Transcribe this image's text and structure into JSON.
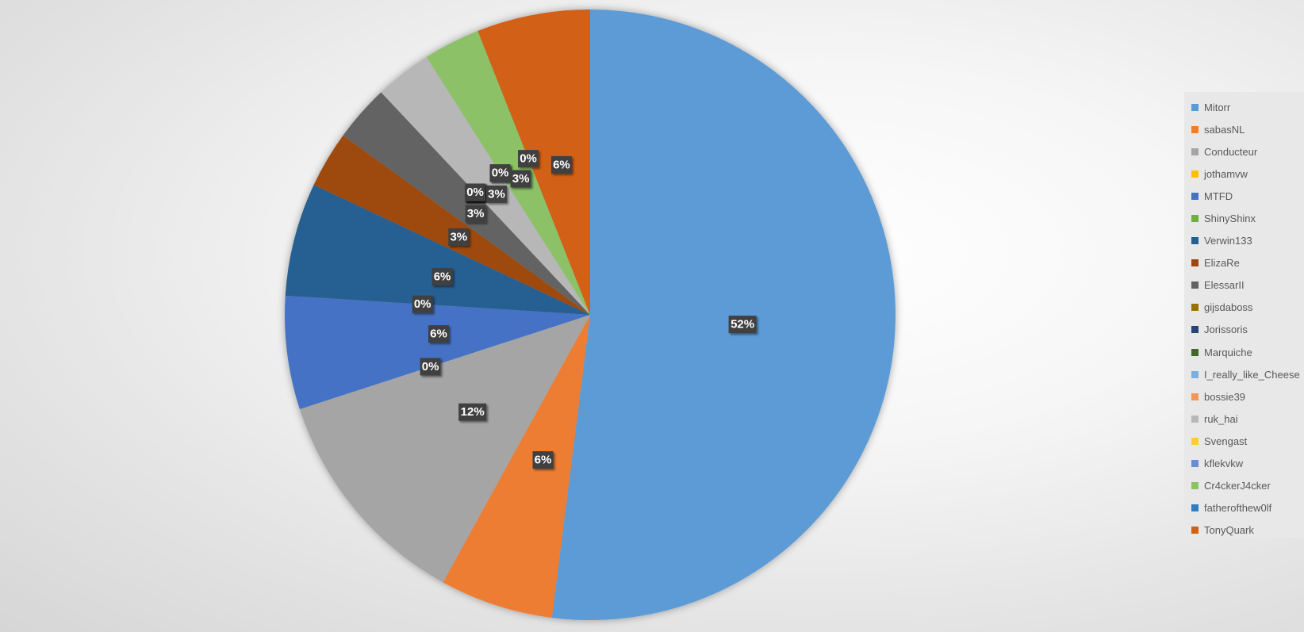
{
  "chart_data": {
    "type": "pie",
    "series": [
      {
        "name": "Mitorr",
        "value": 52,
        "label": "52%",
        "color": "#5B9BD5"
      },
      {
        "name": "sabasNL",
        "value": 6,
        "label": "6%",
        "color": "#ED7D31"
      },
      {
        "name": "Conducteur",
        "value": 12,
        "label": "12%",
        "color": "#A5A5A5"
      },
      {
        "name": "jothamvw",
        "value": 0,
        "label": "0%",
        "color": "#FFC000"
      },
      {
        "name": "MTFD",
        "value": 6,
        "label": "6%",
        "color": "#4472C4"
      },
      {
        "name": "ShinyShinx",
        "value": 0,
        "label": "0%",
        "color": "#70AD47"
      },
      {
        "name": "Verwin133",
        "value": 6,
        "label": "6%",
        "color": "#255E91"
      },
      {
        "name": "ElizaRe",
        "value": 3,
        "label": "3%",
        "color": "#9E480E"
      },
      {
        "name": "ElessarII",
        "value": 3,
        "label": "3%",
        "color": "#636363"
      },
      {
        "name": "gijsdaboss",
        "value": 0,
        "label": "0%",
        "color": "#997300"
      },
      {
        "name": "Jorissoris",
        "value": 0,
        "label": "0%",
        "color": "#264478"
      },
      {
        "name": "Marquiche",
        "value": 0,
        "label": "0%",
        "color": "#43682B"
      },
      {
        "name": "I_really_like_Cheese",
        "value": 0,
        "label": "0%",
        "color": "#7CAFDD"
      },
      {
        "name": "bossie39",
        "value": 0,
        "label": "0%",
        "color": "#F1975A"
      },
      {
        "name": "ruk_hai",
        "value": 3,
        "label": "3%",
        "color": "#B7B7B7"
      },
      {
        "name": "Svengast",
        "value": 0,
        "label": "0%",
        "color": "#FFCD33"
      },
      {
        "name": "kflekvkw",
        "value": 0,
        "label": "0%",
        "color": "#698ED0"
      },
      {
        "name": "Cr4ckerJ4cker",
        "value": 3,
        "label": "3%",
        "color": "#8CC168"
      },
      {
        "name": "fatherofthew0lf",
        "value": 0,
        "label": "0%",
        "color": "#327DC2"
      },
      {
        "name": "TonyQuark",
        "value": 6,
        "label": "6%",
        "color": "#D26012"
      }
    ],
    "legend": "right",
    "data_label_background": "#404040",
    "data_label_text_color": "#FFFFFF"
  },
  "legend_text_color": "#595959",
  "legend_background": "#E8E8E8"
}
